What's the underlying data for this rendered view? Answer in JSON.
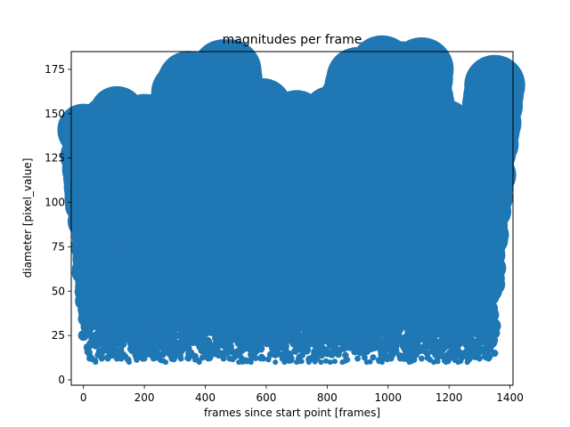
{
  "chart_data": {
    "type": "scatter",
    "title": "magnitudes per frame",
    "xlabel": "frames since start point [frames]",
    "ylabel": "diameter [pixel_value]",
    "xlim": [
      -40,
      1410
    ],
    "ylim": [
      -3,
      185
    ],
    "xticks": [
      0,
      200,
      400,
      600,
      800,
      1000,
      1200,
      1400
    ],
    "yticks": [
      0,
      25,
      50,
      75,
      100,
      125,
      150,
      175
    ],
    "grid": false,
    "legend": "none",
    "color": "#1f77b4",
    "series": [
      {
        "x_start": 0,
        "x_end": 1350,
        "typical_range": [
          10,
          115
        ],
        "envelope": [
          {
            "x": 0,
            "min": 25,
            "max": 141
          },
          {
            "x": 20,
            "min": 12,
            "max": 115
          },
          {
            "x": 40,
            "min": 10,
            "max": 110
          },
          {
            "x": 60,
            "min": 12,
            "max": 123
          },
          {
            "x": 80,
            "min": 12,
            "max": 145
          },
          {
            "x": 110,
            "min": 12,
            "max": 150
          },
          {
            "x": 150,
            "min": 10,
            "max": 120
          },
          {
            "x": 200,
            "min": 12,
            "max": 146
          },
          {
            "x": 230,
            "min": 12,
            "max": 146
          },
          {
            "x": 270,
            "min": 10,
            "max": 120
          },
          {
            "x": 320,
            "min": 12,
            "max": 162
          },
          {
            "x": 345,
            "min": 12,
            "max": 168
          },
          {
            "x": 380,
            "min": 10,
            "max": 155
          },
          {
            "x": 410,
            "min": 12,
            "max": 168
          },
          {
            "x": 460,
            "min": 12,
            "max": 174
          },
          {
            "x": 480,
            "min": 12,
            "max": 174
          },
          {
            "x": 510,
            "min": 10,
            "max": 160
          },
          {
            "x": 550,
            "min": 10,
            "max": 138
          },
          {
            "x": 590,
            "min": 12,
            "max": 154
          },
          {
            "x": 630,
            "min": 10,
            "max": 140
          },
          {
            "x": 660,
            "min": 10,
            "max": 125
          },
          {
            "x": 700,
            "min": 10,
            "max": 148
          },
          {
            "x": 740,
            "min": 10,
            "max": 130
          },
          {
            "x": 780,
            "min": 10,
            "max": 118
          },
          {
            "x": 810,
            "min": 10,
            "max": 150
          },
          {
            "x": 850,
            "min": 10,
            "max": 150
          },
          {
            "x": 900,
            "min": 12,
            "max": 170
          },
          {
            "x": 930,
            "min": 10,
            "max": 162
          },
          {
            "x": 980,
            "min": 10,
            "max": 176
          },
          {
            "x": 1010,
            "min": 12,
            "max": 160
          },
          {
            "x": 1040,
            "min": 12,
            "max": 173
          },
          {
            "x": 1070,
            "min": 10,
            "max": 150
          },
          {
            "x": 1110,
            "min": 12,
            "max": 175
          },
          {
            "x": 1150,
            "min": 10,
            "max": 130
          },
          {
            "x": 1190,
            "min": 10,
            "max": 143
          },
          {
            "x": 1230,
            "min": 10,
            "max": 130
          },
          {
            "x": 1260,
            "min": 10,
            "max": 122
          },
          {
            "x": 1300,
            "min": 12,
            "max": 140
          },
          {
            "x": 1330,
            "min": 12,
            "max": 150
          },
          {
            "x": 1350,
            "min": 15,
            "max": 166
          }
        ]
      }
    ]
  }
}
